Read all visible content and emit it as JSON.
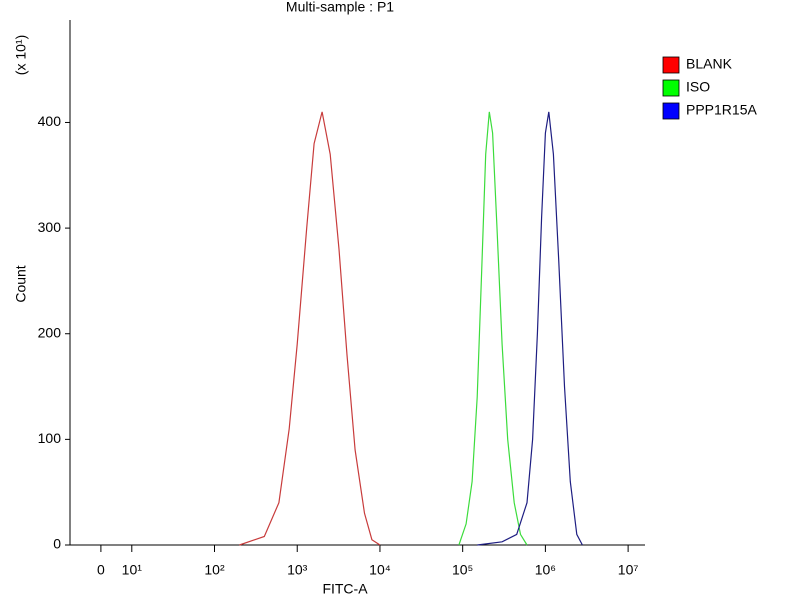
{
  "chart_data": {
    "type": "line",
    "title": "Multi-sample : P1",
    "x_label": "FITC-A",
    "y_label": "Count",
    "y_multiplier": "(x 10¹)",
    "xscale": "biexponential",
    "xlim": [
      -10,
      16000000
    ],
    "ylim": [
      0,
      497
    ],
    "xticks": [
      0,
      {
        "value": 10,
        "label": "10¹"
      },
      {
        "value": 100,
        "label": "10²"
      },
      {
        "value": 1000,
        "label": "10³"
      },
      {
        "value": 10000,
        "label": "10⁴"
      },
      {
        "value": 100000,
        "label": "10⁵"
      },
      {
        "value": 1000000,
        "label": "10⁶"
      },
      {
        "value": 10000000,
        "label": "10⁷"
      }
    ],
    "yticks": [
      0,
      100,
      200,
      300,
      400
    ],
    "legend": "right",
    "series": [
      {
        "name": "BLANK",
        "color": "#c83c3c",
        "legend_color": "#ff0000",
        "x": [
          200,
          400,
          600,
          800,
          1000,
          1300,
          1600,
          2000,
          2500,
          3200,
          4000,
          5000,
          6500,
          8000,
          10000
        ],
        "values": [
          0,
          8,
          40,
          110,
          190,
          300,
          380,
          410,
          370,
          280,
          180,
          90,
          30,
          5,
          0
        ]
      },
      {
        "name": "ISO",
        "color": "#3cdc3c",
        "legend_color": "#00ff00",
        "x": [
          90000,
          110000,
          130000,
          150000,
          170000,
          190000,
          210000,
          230000,
          260000,
          300000,
          350000,
          420000,
          500000,
          600000
        ],
        "values": [
          0,
          20,
          60,
          140,
          260,
          370,
          410,
          390,
          300,
          190,
          100,
          40,
          10,
          0
        ]
      },
      {
        "name": "PPP1R15A",
        "color": "#1e1e82",
        "legend_color": "#0000ff",
        "x": [
          150000,
          300000,
          450000,
          600000,
          700000,
          800000,
          900000,
          1000000,
          1100000,
          1250000,
          1450000,
          1700000,
          2000000,
          2400000,
          2800000
        ],
        "values": [
          0,
          3,
          10,
          40,
          100,
          200,
          310,
          390,
          410,
          370,
          270,
          150,
          60,
          10,
          0
        ]
      }
    ]
  }
}
